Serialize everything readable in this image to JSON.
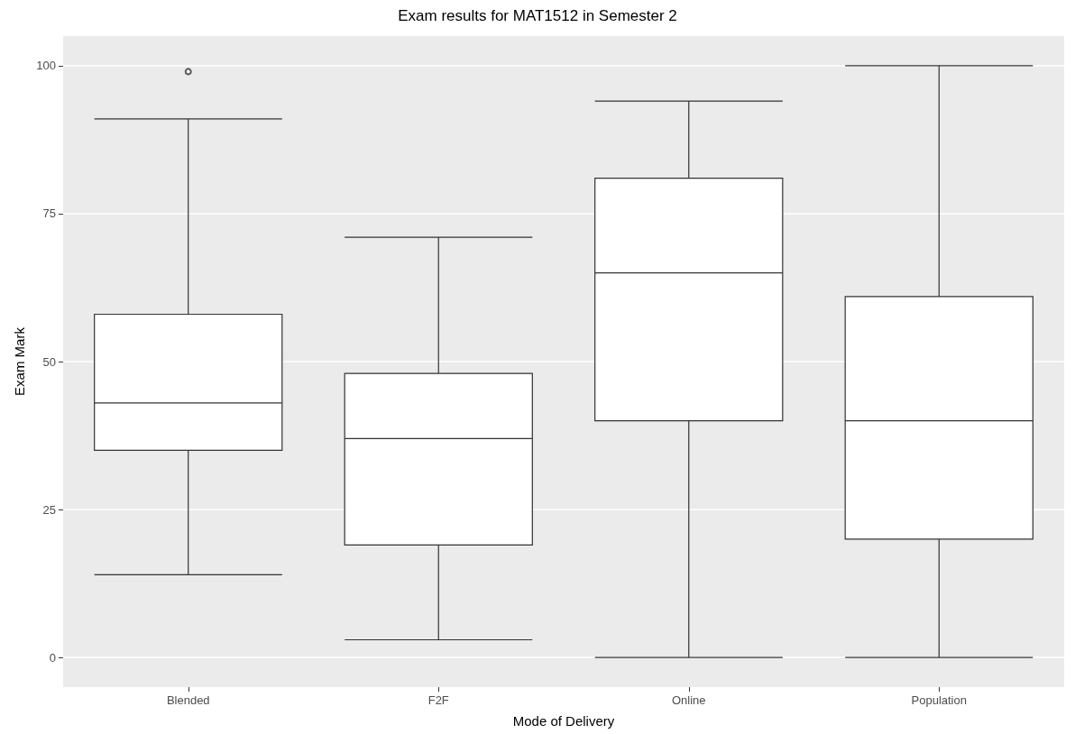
{
  "chart_data": {
    "type": "box",
    "title": "Exam results for MAT1512 in Semester 2",
    "xlabel": "Mode of Delivery",
    "ylabel": "Exam Mark",
    "categories": [
      "Blended",
      "F2F",
      "Online",
      "Population"
    ],
    "boxes": [
      {
        "low": 14,
        "q1": 35,
        "median": 43,
        "q3": 58,
        "high": 91,
        "outliers": [
          99
        ]
      },
      {
        "low": 3,
        "q1": 19,
        "median": 37,
        "q3": 48,
        "high": 71
      },
      {
        "low": 0,
        "q1": 40,
        "median": 65,
        "q3": 81,
        "high": 94
      },
      {
        "low": 0,
        "q1": 20,
        "median": 40,
        "q3": 61,
        "high": 100
      }
    ],
    "color": "#333333",
    "ylim": [
      -5,
      105
    ],
    "yticks": [
      0,
      25,
      50,
      75,
      100
    ],
    "grid": true
  }
}
